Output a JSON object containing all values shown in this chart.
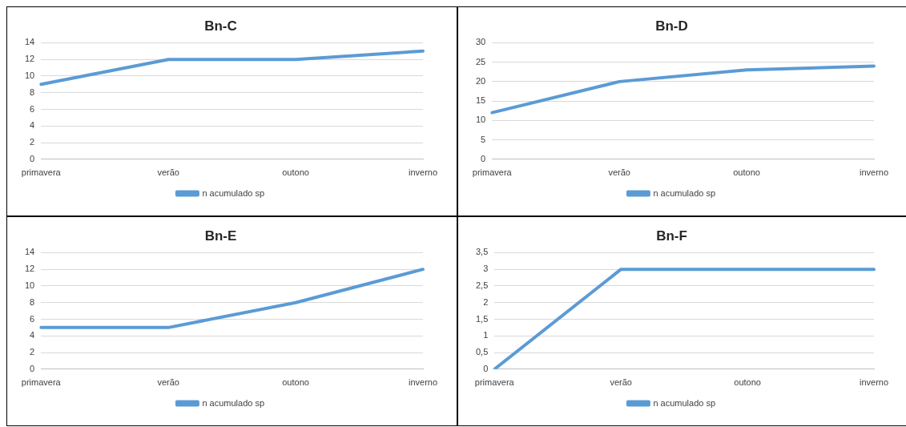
{
  "chart_data": [
    {
      "type": "line",
      "title": "Bn-C",
      "categories": [
        "primavera",
        "verão",
        "outono",
        "inverno"
      ],
      "series": [
        {
          "name": "n acumulado sp",
          "color": "#5b9bd5",
          "values": [
            9,
            12,
            12,
            13
          ]
        }
      ],
      "ylim": [
        0,
        14
      ],
      "yticks": [
        0,
        2,
        4,
        6,
        8,
        10,
        12,
        14
      ],
      "grid": "y",
      "legend": "bottom",
      "marker": "none"
    },
    {
      "type": "line",
      "title": "Bn-D",
      "categories": [
        "primavera",
        "verão",
        "outono",
        "inverno"
      ],
      "series": [
        {
          "name": "n acumulado sp",
          "color": "#5b9bd5",
          "values": [
            12,
            20,
            23,
            24
          ]
        }
      ],
      "ylim": [
        0,
        30
      ],
      "yticks": [
        0,
        5,
        10,
        15,
        20,
        25,
        30
      ],
      "grid": "y",
      "legend": "bottom",
      "marker": "none"
    },
    {
      "type": "line",
      "title": "Bn-E",
      "categories": [
        "primavera",
        "verão",
        "outono",
        "inverno"
      ],
      "series": [
        {
          "name": "n acumulado sp",
          "color": "#5b9bd5",
          "values": [
            5,
            5,
            8,
            12
          ]
        }
      ],
      "ylim": [
        0,
        14
      ],
      "yticks": [
        0,
        2,
        4,
        6,
        8,
        10,
        12,
        14
      ],
      "grid": "y",
      "legend": "bottom",
      "marker": "none"
    },
    {
      "type": "line",
      "title": "Bn-F",
      "categories": [
        "primavera",
        "verão",
        "outono",
        "inverno"
      ],
      "series": [
        {
          "name": "n acumulado sp",
          "color": "#5b9bd5",
          "values": [
            0,
            3,
            3,
            3
          ]
        }
      ],
      "ylim": [
        0,
        3.5
      ],
      "yticks": [
        0,
        {
          "value": 0.5,
          "label": "0,5"
        },
        1,
        {
          "value": 1.5,
          "label": "1,5"
        },
        2,
        {
          "value": 2.5,
          "label": "2,5"
        },
        3,
        {
          "value": 3.5,
          "label": "3,5"
        }
      ],
      "grid": "y",
      "legend": "bottom",
      "marker": "none"
    }
  ]
}
